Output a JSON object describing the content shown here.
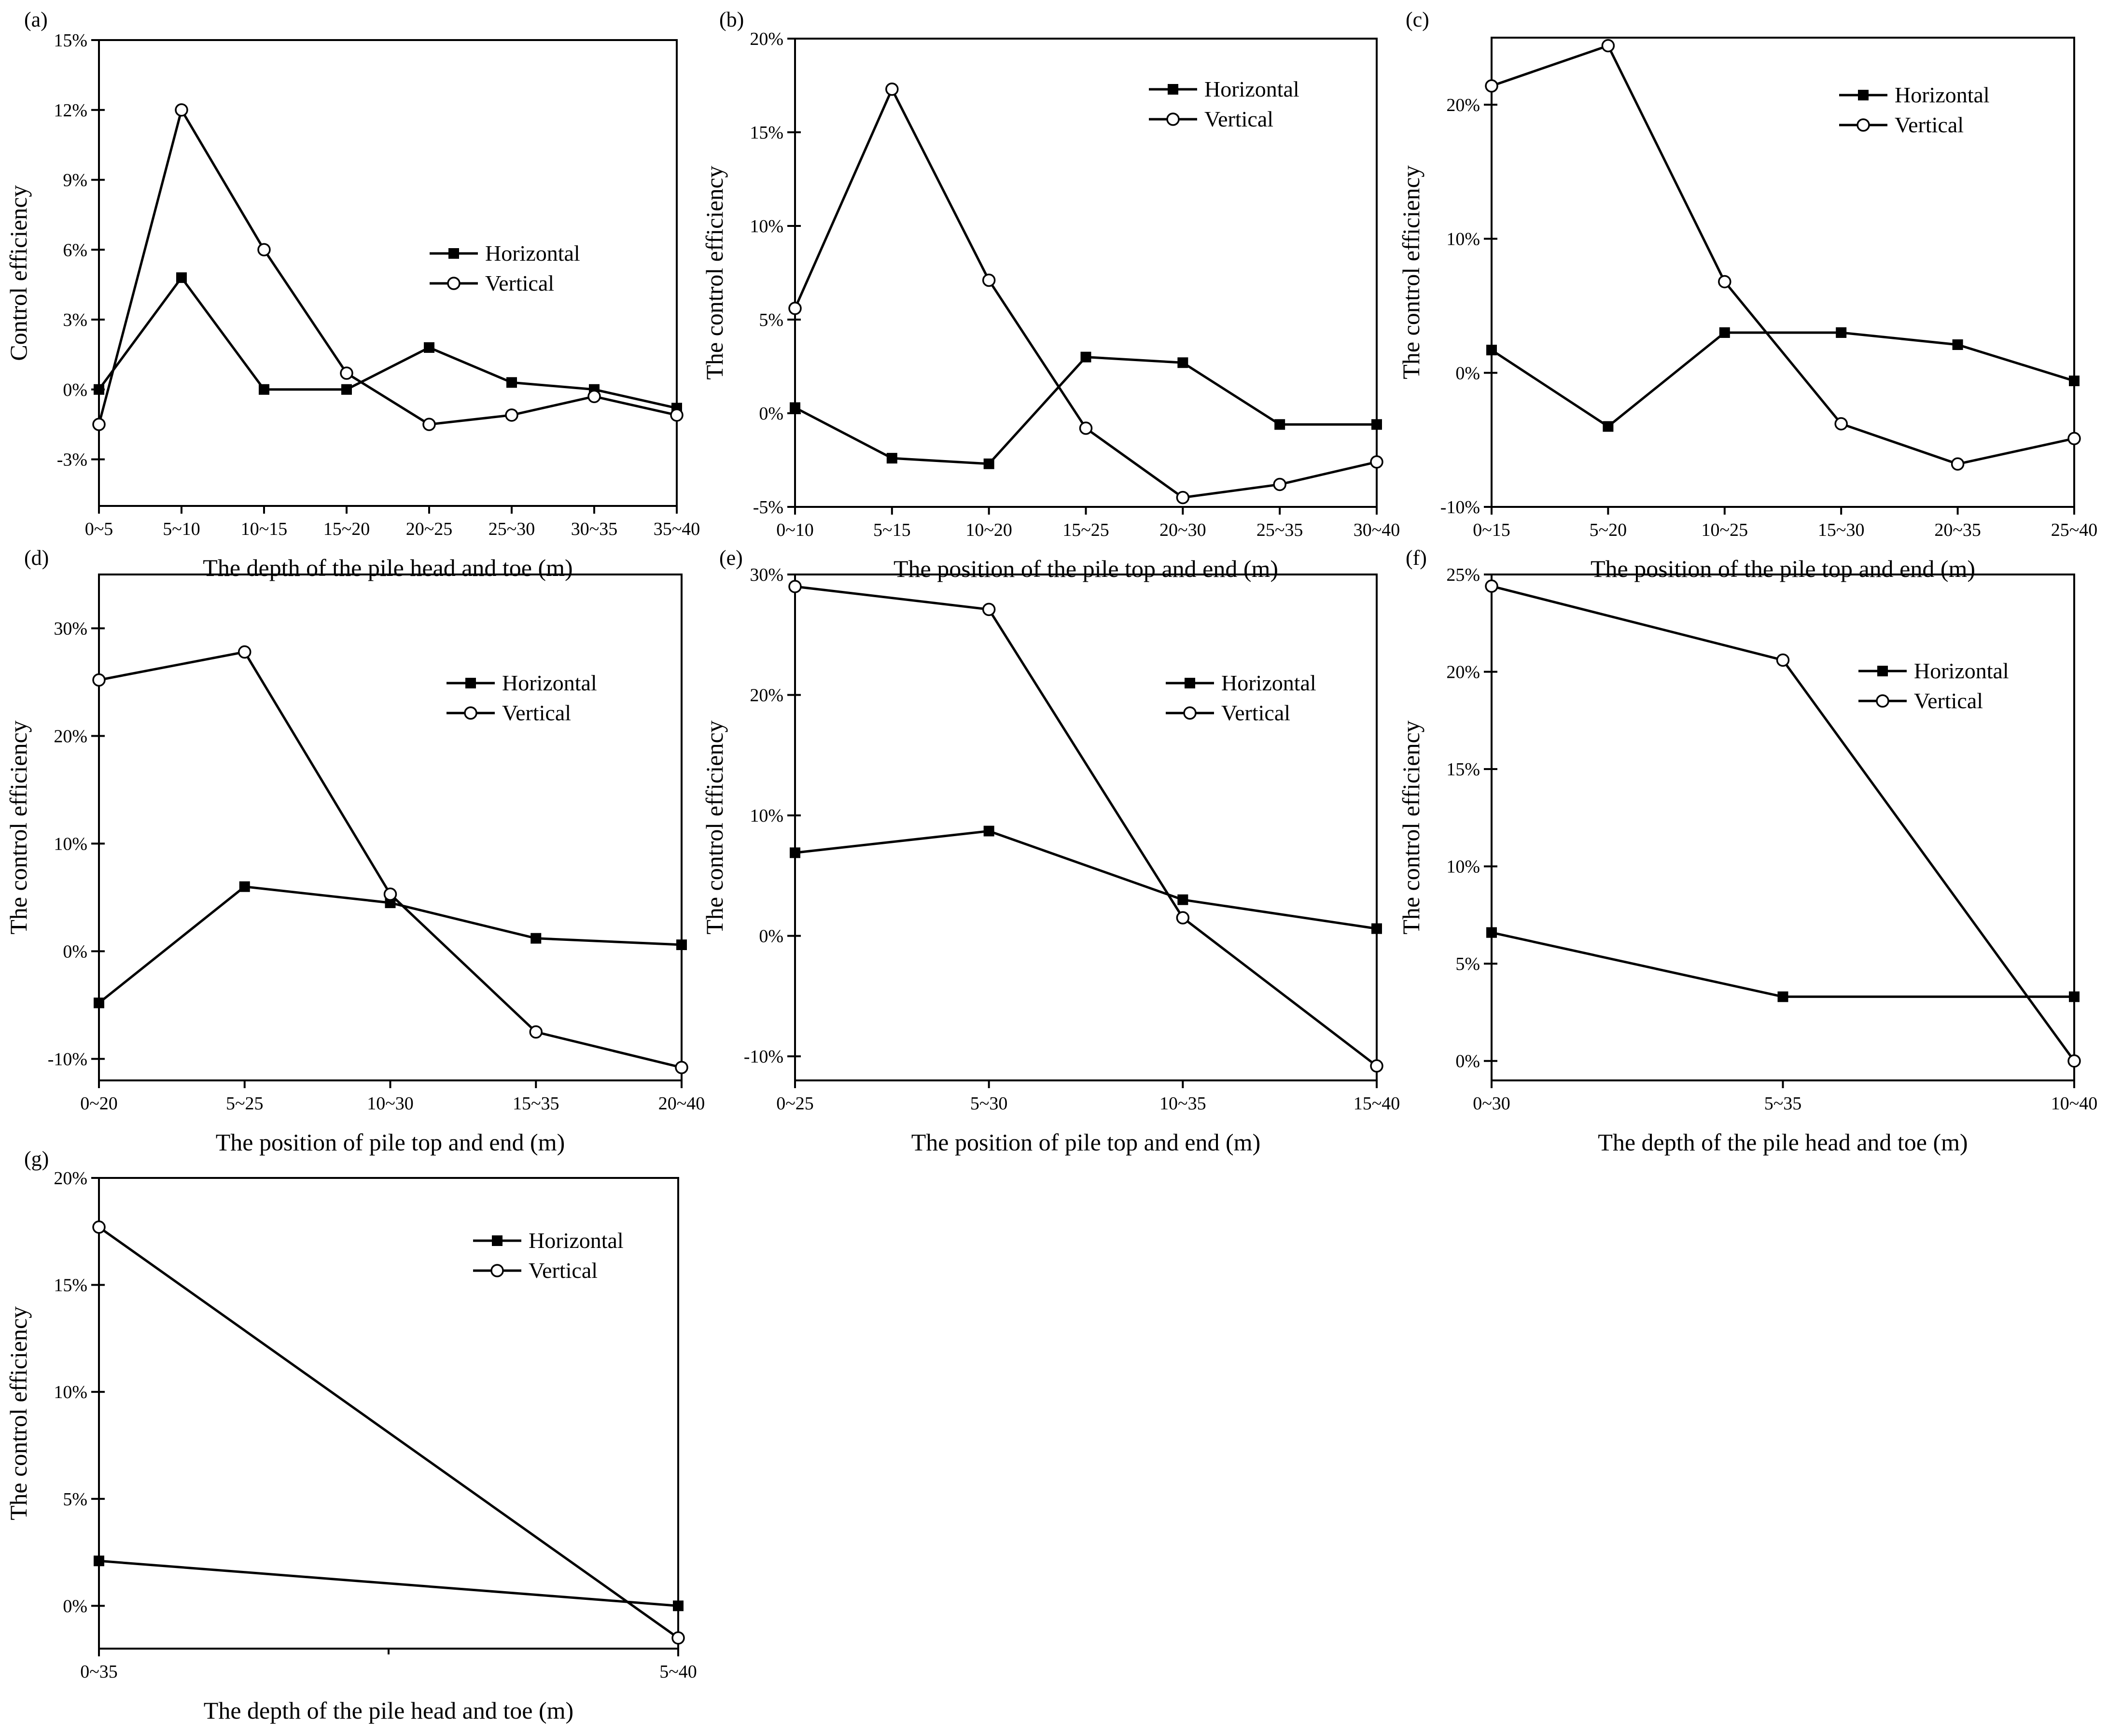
{
  "figure": {
    "background": "#ffffff",
    "line_color": "#000000"
  },
  "chart_data": [
    {
      "id": "a",
      "panel_label": "(a)",
      "type": "line",
      "xlabel": "The depth of the pile head and toe (m)",
      "ylabel": "Control efficiency",
      "categories": [
        "0~5",
        "5~10",
        "10~15",
        "15~20",
        "20~25",
        "25~30",
        "30~35",
        "35~40"
      ],
      "ylim": [
        -5,
        15
      ],
      "yticks": [
        -3,
        0,
        3,
        6,
        9,
        12,
        15
      ],
      "ytick_labels": [
        "-3%",
        "0%",
        "3%",
        "6%",
        "9%",
        "12%",
        "15%"
      ],
      "legend": [
        "Horizontal",
        "Vertical"
      ],
      "series": [
        {
          "name": "Horizontal",
          "marker": "filled-square",
          "values": [
            0,
            4.8,
            0,
            0,
            1.8,
            0.3,
            0,
            -0.8
          ]
        },
        {
          "name": "Vertical",
          "marker": "open-circle",
          "values": [
            -1.5,
            12,
            6,
            0.7,
            -1.5,
            -1.1,
            -0.3,
            -1.1
          ]
        }
      ]
    },
    {
      "id": "b",
      "panel_label": "(b)",
      "type": "line",
      "xlabel": "The position of the pile top and end (m)",
      "ylabel": "The control efficiency",
      "categories": [
        "0~10",
        "5~15",
        "10~20",
        "15~25",
        "20~30",
        "25~35",
        "30~40"
      ],
      "ylim": [
        -5,
        20
      ],
      "yticks": [
        -5,
        0,
        5,
        10,
        15,
        20
      ],
      "ytick_labels": [
        "-5%",
        "0%",
        "5%",
        "10%",
        "15%",
        "20%"
      ],
      "legend": [
        "Horizontal",
        "Vertical"
      ],
      "series": [
        {
          "name": "Horizontal",
          "marker": "filled-square",
          "values": [
            0.3,
            -2.4,
            -2.7,
            3.0,
            2.7,
            -0.6,
            -0.6
          ]
        },
        {
          "name": "Vertical",
          "marker": "open-circle",
          "values": [
            5.6,
            17.3,
            7.1,
            -0.8,
            -4.5,
            -3.8,
            -2.6
          ]
        }
      ]
    },
    {
      "id": "c",
      "panel_label": "(c)",
      "type": "line",
      "xlabel": "The position of the pile top and end (m)",
      "ylabel": "The control efficiency",
      "categories": [
        "0~15",
        "5~20",
        "10~25",
        "15~30",
        "20~35",
        "25~40"
      ],
      "ylim": [
        -10,
        25
      ],
      "yticks": [
        -10,
        0,
        10,
        20
      ],
      "ytick_labels": [
        "-10%",
        "0%",
        "10%",
        "20%"
      ],
      "legend": [
        "Horizontal",
        "Vertical"
      ],
      "series": [
        {
          "name": "Horizontal",
          "marker": "filled-square",
          "values": [
            1.7,
            -4,
            3,
            3,
            2.1,
            -0.6
          ]
        },
        {
          "name": "Vertical",
          "marker": "open-circle",
          "values": [
            21.4,
            24.4,
            6.8,
            -3.8,
            -6.8,
            -4.9
          ]
        }
      ]
    },
    {
      "id": "d",
      "panel_label": "(d)",
      "type": "line",
      "xlabel": "The position of pile top and end (m)",
      "ylabel": "The control efficiency",
      "categories": [
        "0~20",
        "5~25",
        "10~30",
        "15~35",
        "20~40"
      ],
      "ylim": [
        -12,
        35
      ],
      "yticks": [
        -10,
        0,
        10,
        20,
        30
      ],
      "ytick_labels": [
        "-10%",
        "0%",
        "10%",
        "20%",
        "30%"
      ],
      "legend": [
        "Horizontal",
        "Vertical"
      ],
      "series": [
        {
          "name": "Horizontal",
          "marker": "filled-square",
          "values": [
            -4.8,
            6,
            4.5,
            1.2,
            0.6
          ]
        },
        {
          "name": "Vertical",
          "marker": "open-circle",
          "values": [
            25.2,
            27.8,
            5.3,
            -7.5,
            -10.8
          ]
        }
      ]
    },
    {
      "id": "e",
      "panel_label": "(e)",
      "type": "line",
      "xlabel": "The position of pile top and end (m)",
      "ylabel": "The control efficiency",
      "categories": [
        "0~25",
        "5~30",
        "10~35",
        "15~40"
      ],
      "ylim": [
        -12,
        30
      ],
      "yticks": [
        -10,
        0,
        10,
        20,
        30
      ],
      "ytick_labels": [
        "-10%",
        "0%",
        "10%",
        "20%",
        "30%"
      ],
      "legend": [
        "Horizontal",
        "Vertical"
      ],
      "series": [
        {
          "name": "Horizontal",
          "marker": "filled-square",
          "values": [
            6.9,
            8.7,
            3,
            0.6
          ]
        },
        {
          "name": "Vertical",
          "marker": "open-circle",
          "values": [
            29,
            27.1,
            1.5,
            -10.8
          ]
        }
      ]
    },
    {
      "id": "f",
      "panel_label": "(f)",
      "type": "line",
      "xlabel": "The depth of the pile head and toe (m)",
      "ylabel": "The control efficiency",
      "categories": [
        "0~30",
        "5~35",
        "10~40"
      ],
      "ylim": [
        -1,
        25
      ],
      "yticks": [
        0,
        5,
        10,
        15,
        20,
        25
      ],
      "ytick_labels": [
        "0%",
        "5%",
        "10%",
        "15%",
        "20%",
        "25%"
      ],
      "legend": [
        "Horizontal",
        "Vertical"
      ],
      "series": [
        {
          "name": "Horizontal",
          "marker": "filled-square",
          "values": [
            6.6,
            3.3,
            3.3
          ]
        },
        {
          "name": "Vertical",
          "marker": "open-circle",
          "values": [
            24.4,
            20.6,
            0
          ]
        }
      ]
    },
    {
      "id": "g",
      "panel_label": "(g)",
      "type": "line",
      "xlabel": "The depth of the pile head and toe (m)",
      "ylabel": "The control efficiency",
      "categories": [
        "0~35",
        "5~40"
      ],
      "ylim": [
        -2,
        20
      ],
      "yticks": [
        0,
        5,
        10,
        15,
        20
      ],
      "ytick_labels": [
        "0%",
        "5%",
        "10%",
        "15%",
        "20%"
      ],
      "legend": [
        "Horizontal",
        "Vertical"
      ],
      "series": [
        {
          "name": "Horizontal",
          "marker": "filled-square",
          "values": [
            2.1,
            0
          ]
        },
        {
          "name": "Vertical",
          "marker": "open-circle",
          "values": [
            17.7,
            -1.5
          ]
        }
      ]
    }
  ]
}
